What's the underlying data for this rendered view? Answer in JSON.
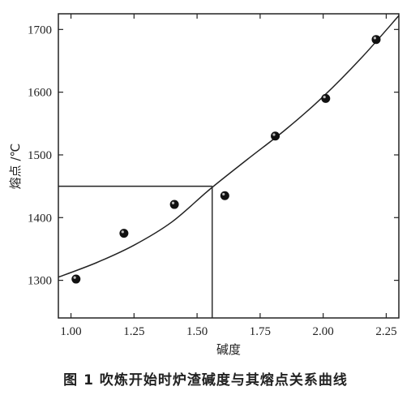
{
  "chart_data": {
    "type": "scatter",
    "xlabel": "碱度",
    "ylabel": "熔点 /℃",
    "xlim": [
      0.95,
      2.3
    ],
    "ylim": [
      1240,
      1725
    ],
    "x_ticks": [
      "1.00",
      "1.25",
      "1.50",
      "1.75",
      "2.00",
      "2.25"
    ],
    "y_ticks": [
      "1300",
      "1400",
      "1500",
      "1600",
      "1700"
    ],
    "points": [
      {
        "x": 1.02,
        "y": 1302
      },
      {
        "x": 1.21,
        "y": 1375
      },
      {
        "x": 1.41,
        "y": 1421
      },
      {
        "x": 1.61,
        "y": 1435
      },
      {
        "x": 1.81,
        "y": 1530
      },
      {
        "x": 2.01,
        "y": 1590
      },
      {
        "x": 2.21,
        "y": 1684
      }
    ],
    "fit_curve": [
      {
        "x": 0.95,
        "y": 1305
      },
      {
        "x": 1.1,
        "y": 1328
      },
      {
        "x": 1.25,
        "y": 1356
      },
      {
        "x": 1.4,
        "y": 1393
      },
      {
        "x": 1.55,
        "y": 1445
      },
      {
        "x": 1.7,
        "y": 1493
      },
      {
        "x": 1.85,
        "y": 1540
      },
      {
        "x": 2.0,
        "y": 1593
      },
      {
        "x": 2.15,
        "y": 1654
      },
      {
        "x": 2.3,
        "y": 1722
      }
    ],
    "reference_lines": [
      {
        "orientation": "horizontal",
        "y": 1450,
        "x_from": 0.95,
        "x_to": 1.56
      },
      {
        "orientation": "vertical",
        "x": 1.56,
        "y_from": 1240,
        "y_to": 1450
      }
    ]
  },
  "caption": "图 1 吹炼开始时炉渣碱度与其熔点关系曲线"
}
